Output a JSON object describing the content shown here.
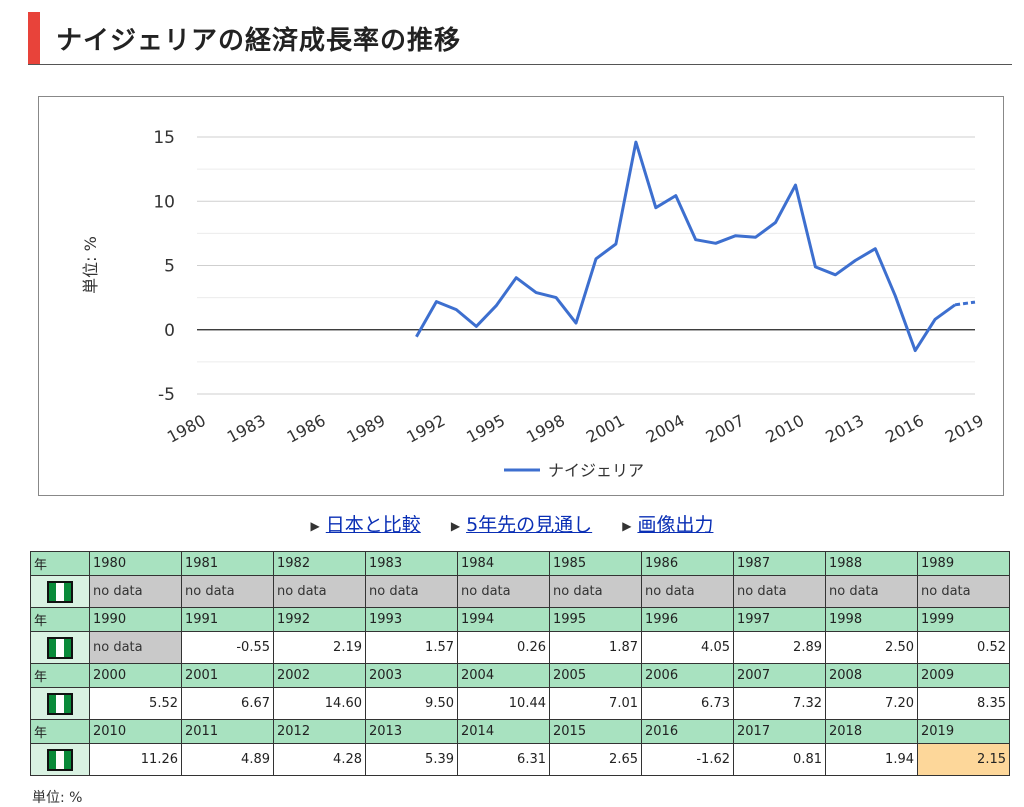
{
  "page": {
    "title": "ナイジェリアの経済成長率の推移"
  },
  "colors": {
    "accent": "#e8433a",
    "line": "#3d6fcf",
    "header_green": "#a8e2c0",
    "no_data_gray": "#c9c9c9",
    "highlight": "#fdd79a"
  },
  "chart_data": {
    "type": "line",
    "title": "",
    "xlabel": "",
    "ylabel": "単位: %",
    "ylim": [
      -5,
      15
    ],
    "y_ticks": [
      "15",
      "10",
      "5",
      "0",
      "-5"
    ],
    "x_tick_labels": [
      "1980",
      "1983",
      "1986",
      "1989",
      "1992",
      "1995",
      "1998",
      "2001",
      "2004",
      "2007",
      "2010",
      "2013",
      "2016",
      "2019"
    ],
    "grid": true,
    "legend": {
      "position": "bottom",
      "entries": [
        "ナイジェリア"
      ]
    },
    "x": [
      1991,
      1992,
      1993,
      1994,
      1995,
      1996,
      1997,
      1998,
      1999,
      2000,
      2001,
      2002,
      2003,
      2004,
      2005,
      2006,
      2007,
      2008,
      2009,
      2010,
      2011,
      2012,
      2013,
      2014,
      2015,
      2016,
      2017,
      2018,
      2019
    ],
    "series": [
      {
        "name": "ナイジェリア",
        "values": [
          -0.55,
          2.19,
          1.57,
          0.26,
          1.87,
          4.05,
          2.89,
          2.5,
          0.52,
          5.52,
          6.67,
          14.6,
          9.5,
          10.44,
          7.01,
          6.73,
          7.32,
          7.2,
          8.35,
          11.26,
          4.89,
          4.28,
          5.39,
          6.31,
          2.65,
          -1.62,
          0.81,
          1.94,
          2.15
        ]
      }
    ]
  },
  "links": [
    {
      "label": "日本と比較"
    },
    {
      "label": "5年先の見通し"
    },
    {
      "label": "画像出力"
    }
  ],
  "table": {
    "year_label": "年",
    "flag_icon": "nigeria-flag-icon",
    "no_data_label": "no data",
    "rows": [
      {
        "years": [
          "1980",
          "1981",
          "1982",
          "1983",
          "1984",
          "1985",
          "1986",
          "1987",
          "1988",
          "1989"
        ],
        "values": [
          "no data",
          "no data",
          "no data",
          "no data",
          "no data",
          "no data",
          "no data",
          "no data",
          "no data",
          "no data"
        ]
      },
      {
        "years": [
          "1990",
          "1991",
          "1992",
          "1993",
          "1994",
          "1995",
          "1996",
          "1997",
          "1998",
          "1999"
        ],
        "values": [
          "no data",
          "-0.55",
          "2.19",
          "1.57",
          "0.26",
          "1.87",
          "4.05",
          "2.89",
          "2.50",
          "0.52"
        ]
      },
      {
        "years": [
          "2000",
          "2001",
          "2002",
          "2003",
          "2004",
          "2005",
          "2006",
          "2007",
          "2008",
          "2009"
        ],
        "values": [
          "5.52",
          "6.67",
          "14.60",
          "9.50",
          "10.44",
          "7.01",
          "6.73",
          "7.32",
          "7.20",
          "8.35"
        ]
      },
      {
        "years": [
          "2010",
          "2011",
          "2012",
          "2013",
          "2014",
          "2015",
          "2016",
          "2017",
          "2018",
          "2019"
        ],
        "values": [
          "11.26",
          "4.89",
          "4.28",
          "5.39",
          "6.31",
          "2.65",
          "-1.62",
          "0.81",
          "1.94",
          "2.15"
        ]
      }
    ],
    "highlight_year": "2019"
  },
  "footer": {
    "unit": "単位: %"
  }
}
